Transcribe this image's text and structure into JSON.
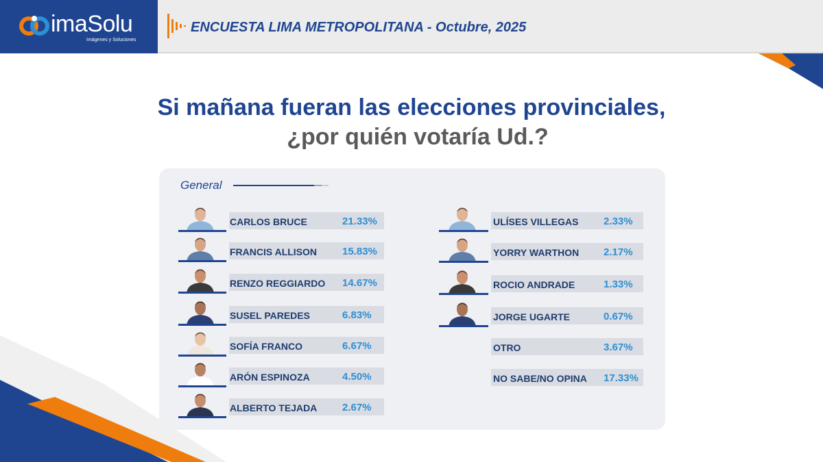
{
  "header": {
    "logo_name": "imaSolu",
    "logo_tagline": "Imágenes y Soluciones",
    "title": "ENCUESTA LIMA METROPOLITANA - Octubre, 2025"
  },
  "question": {
    "line1": "Si mañana fueran las elecciones provinciales,",
    "line2": "¿por quién votaría Ud.?"
  },
  "colors": {
    "navy": "#1f4591",
    "orange": "#ef7d0d",
    "value_blue": "#2d8fd4",
    "bar_gray": "#d9dce2"
  },
  "chart_data": {
    "type": "table",
    "title": "Si mañana fueran las elecciones provinciales, ¿por quién votaría Ud.?",
    "section": "General",
    "unit": "%",
    "categories": [
      "CARLOS BRUCE",
      "FRANCIS ALLISON",
      "RENZO REGGIARDO",
      "SUSEL PAREDES",
      "SOFÍA FRANCO",
      "ARÓN ESPINOZA",
      "ALBERTO TEJADA",
      "ULÍSES VILLEGAS",
      "YORRY WARTHON",
      "ROCIO ANDRADE",
      "JORGE UGARTE",
      "OTRO",
      "NO SABE/NO OPINA"
    ],
    "values": [
      21.33,
      15.83,
      14.67,
      6.83,
      6.67,
      4.5,
      2.67,
      2.33,
      2.17,
      1.33,
      0.67,
      3.67,
      17.33
    ],
    "labels": [
      "21.33%",
      "15.83%",
      "14.67%",
      "6.83%",
      "6.67%",
      "4.50%",
      "2.67%",
      "2.33%",
      "2.17%",
      "1.33%",
      "0.67%",
      "3.67%",
      "17.33%"
    ],
    "has_photo": [
      true,
      true,
      true,
      true,
      true,
      true,
      true,
      true,
      true,
      true,
      true,
      false,
      false
    ]
  }
}
